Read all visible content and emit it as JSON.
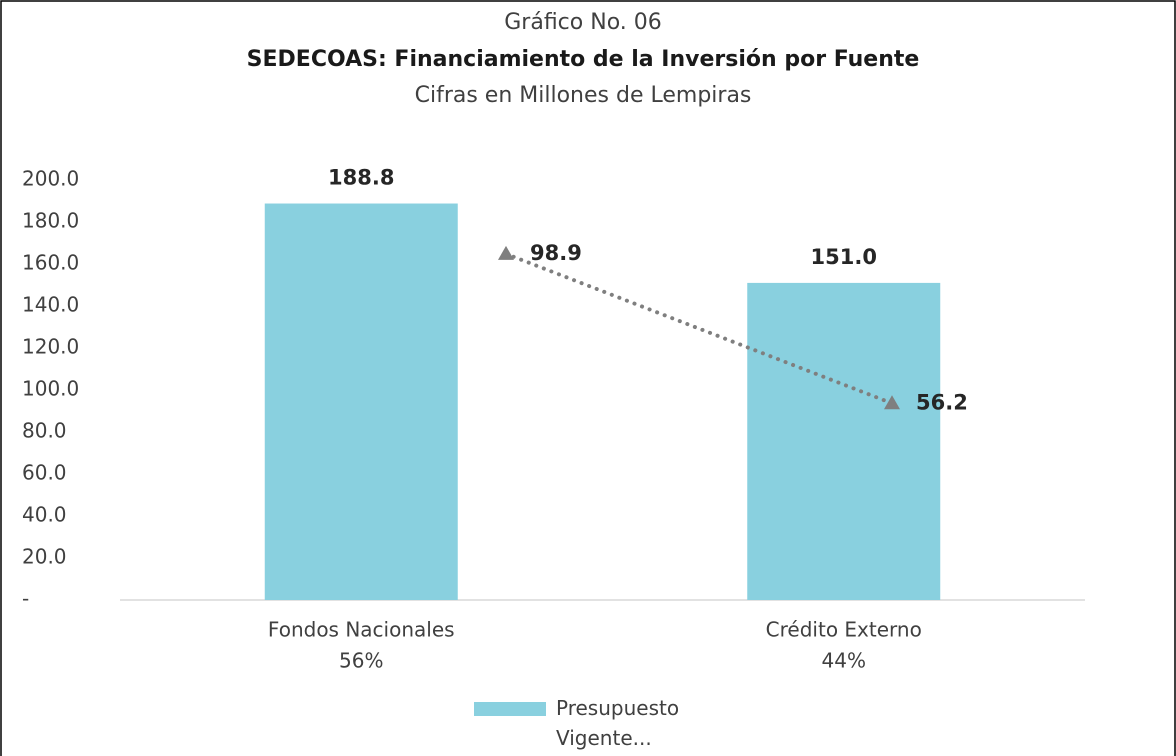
{
  "chart_data": {
    "type": "bar",
    "title": "Gráfico No. 06",
    "subtitle": "SEDECOAS: Financiamiento de la Inversión por Fuente",
    "note": "Cifras en Millones de Lempiras",
    "categories": [
      "Fondos Nacionales",
      "Crédito Externo"
    ],
    "category_shares": [
      "56%",
      "44%"
    ],
    "series": [
      {
        "name": "Presupuesto Vigente...",
        "color": "#89d0df",
        "values": [
          188.8,
          151.0
        ],
        "value_labels": [
          "188.8",
          "151.0"
        ]
      },
      {
        "type": "line",
        "axis": "y2",
        "color": "#7f7f7f",
        "values": [
          98.9,
          56.2
        ],
        "value_labels": [
          "98.9",
          "56.2"
        ]
      }
    ],
    "ylim": [
      0,
      200
    ],
    "yticks": [
      {
        "value": 0,
        "label": "-"
      },
      {
        "value": 20,
        "label": "20.0"
      },
      {
        "value": 40,
        "label": "40.0"
      },
      {
        "value": 60,
        "label": "60.0"
      },
      {
        "value": 80,
        "label": "80.0"
      },
      {
        "value": 100,
        "label": "100.0"
      },
      {
        "value": 120,
        "label": "120.0"
      },
      {
        "value": 140,
        "label": "140.0"
      },
      {
        "value": 160,
        "label": "160.0"
      },
      {
        "value": 180,
        "label": "180.0"
      },
      {
        "value": 200,
        "label": "200.0"
      }
    ],
    "y2lim": [
      0,
      120
    ],
    "grid": false,
    "legend": "bottom"
  }
}
